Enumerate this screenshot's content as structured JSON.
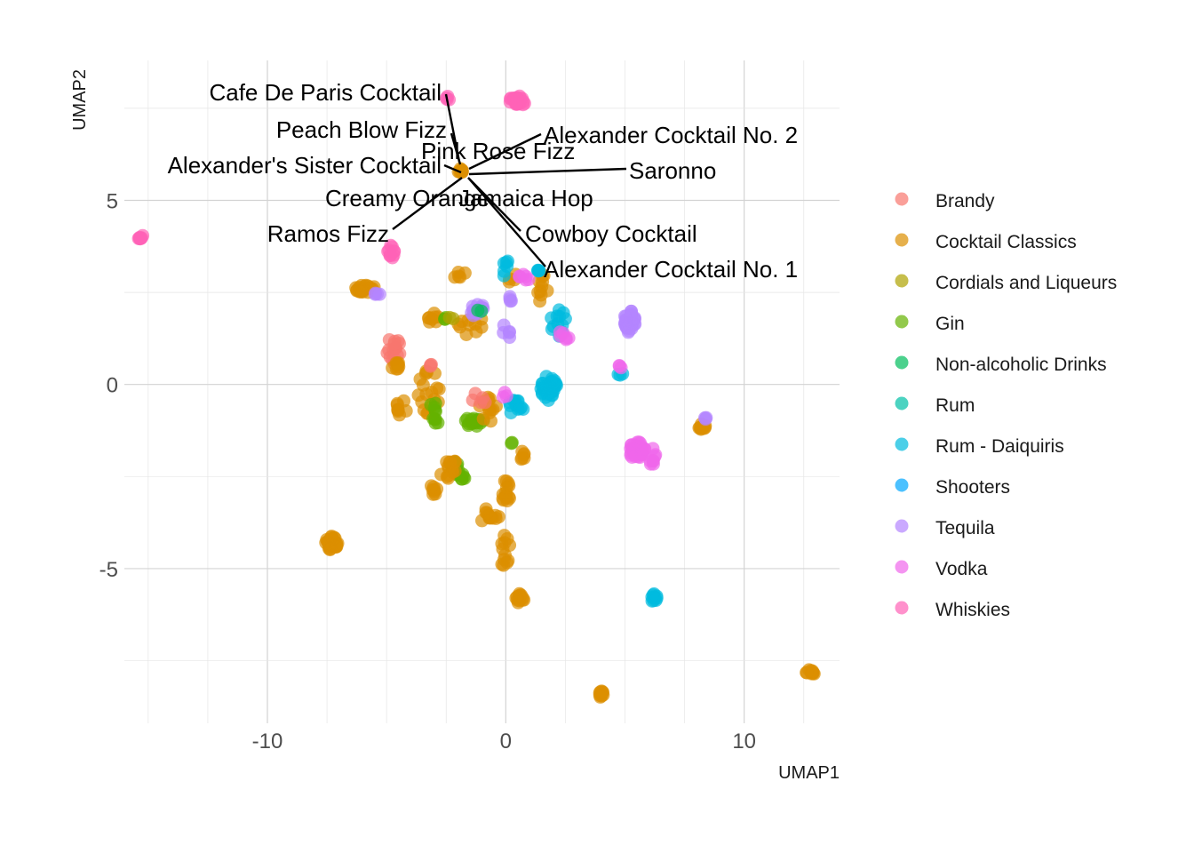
{
  "chart_data": {
    "type": "scatter",
    "xlabel": "UMAP1",
    "ylabel": "UMAP2",
    "xlim": [
      -16,
      14
    ],
    "ylim": [
      -9.2,
      8.8
    ],
    "xticks": [
      -10,
      0,
      10
    ],
    "yticks": [
      -5,
      0,
      5
    ],
    "grid": true,
    "legend_position": "right",
    "legend": [
      {
        "name": "Brandy",
        "color": "#F8766D"
      },
      {
        "name": "Cocktail Classics",
        "color": "#DB8E00"
      },
      {
        "name": "Cordials and Liqueurs",
        "color": "#AEA200"
      },
      {
        "name": "Gin",
        "color": "#64B200"
      },
      {
        "name": "Non-alcoholic Drinks",
        "color": "#00BD5C"
      },
      {
        "name": "Rum",
        "color": "#00C1A7"
      },
      {
        "name": "Rum - Daiquiris",
        "color": "#00BADE"
      },
      {
        "name": "Shooters",
        "color": "#00A6FF"
      },
      {
        "name": "Tequila",
        "color": "#B385FF"
      },
      {
        "name": "Vodka",
        "color": "#EF67EB"
      },
      {
        "name": "Whiskies",
        "color": "#FF63B6"
      }
    ],
    "clusters": [
      {
        "series": "Whiskies",
        "x": -15.3,
        "y": 4.0,
        "n": 8,
        "sx": 0.15,
        "sy": 0.05
      },
      {
        "series": "Whiskies",
        "x": 0.5,
        "y": 7.7,
        "n": 25,
        "sx": 0.35,
        "sy": 0.15
      },
      {
        "series": "Whiskies",
        "x": -2.4,
        "y": 7.8,
        "n": 4,
        "sx": 0.1,
        "sy": 0.1
      },
      {
        "series": "Whiskies",
        "x": -4.8,
        "y": 3.6,
        "n": 10,
        "sx": 0.15,
        "sy": 0.2
      },
      {
        "series": "Cocktail Classics",
        "x": -5.9,
        "y": 2.6,
        "n": 22,
        "sx": 0.45,
        "sy": 0.1
      },
      {
        "series": "Tequila",
        "x": -5.4,
        "y": 2.4,
        "n": 4,
        "sx": 0.2,
        "sy": 0.1
      },
      {
        "series": "Brandy",
        "x": -4.7,
        "y": 0.9,
        "n": 16,
        "sx": 0.3,
        "sy": 0.4
      },
      {
        "series": "Cocktail Classics",
        "x": -4.5,
        "y": 0.5,
        "n": 8,
        "sx": 0.3,
        "sy": 0.1
      },
      {
        "series": "Cocktail Classics",
        "x": -4.4,
        "y": -0.6,
        "n": 8,
        "sx": 0.25,
        "sy": 0.3
      },
      {
        "series": "Cocktail Classics",
        "x": -3.2,
        "y": -0.2,
        "n": 18,
        "sx": 0.5,
        "sy": 0.6
      },
      {
        "series": "Gin",
        "x": -3.0,
        "y": -0.8,
        "n": 10,
        "sx": 0.35,
        "sy": 0.3
      },
      {
        "series": "Cocktail Classics",
        "x": -3.0,
        "y": 1.8,
        "n": 8,
        "sx": 0.3,
        "sy": 0.15
      },
      {
        "series": "Gin",
        "x": -2.5,
        "y": 1.8,
        "n": 3,
        "sx": 0.1,
        "sy": 0.05
      },
      {
        "series": "Cocktail Classics",
        "x": -2.0,
        "y": 3.0,
        "n": 5,
        "sx": 0.3,
        "sy": 0.1
      },
      {
        "series": "Cocktail Classics",
        "x": -1.5,
        "y": 1.6,
        "n": 10,
        "sx": 0.6,
        "sy": 0.3
      },
      {
        "series": "Tequila",
        "x": -1.3,
        "y": 2.1,
        "n": 12,
        "sx": 0.4,
        "sy": 0.25
      },
      {
        "series": "Gin",
        "x": -1.3,
        "y": -1.0,
        "n": 16,
        "sx": 0.4,
        "sy": 0.15
      },
      {
        "series": "Cocktail Classics",
        "x": -0.8,
        "y": -0.7,
        "n": 12,
        "sx": 0.5,
        "sy": 0.4
      },
      {
        "series": "Brandy",
        "x": -1.1,
        "y": -0.4,
        "n": 5,
        "sx": 0.3,
        "sy": 0.2
      },
      {
        "series": "Gin",
        "x": -2.0,
        "y": -2.2,
        "n": 8,
        "sx": 0.3,
        "sy": 0.15
      },
      {
        "series": "Gin",
        "x": -1.9,
        "y": -2.5,
        "n": 8,
        "sx": 0.2,
        "sy": 0.1
      },
      {
        "series": "Cocktail Classics",
        "x": -2.4,
        "y": -2.3,
        "n": 14,
        "sx": 0.45,
        "sy": 0.3
      },
      {
        "series": "Cocktail Classics",
        "x": -3.0,
        "y": -2.8,
        "n": 8,
        "sx": 0.15,
        "sy": 0.2
      },
      {
        "series": "Cocktail Classics",
        "x": -0.6,
        "y": -3.6,
        "n": 12,
        "sx": 0.5,
        "sy": 0.25
      },
      {
        "series": "Cocktail Classics",
        "x": 0.0,
        "y": -4.6,
        "n": 12,
        "sx": 0.2,
        "sy": 0.6
      },
      {
        "series": "Cocktail Classics",
        "x": 0.0,
        "y": -2.9,
        "n": 14,
        "sx": 0.2,
        "sy": 0.3
      },
      {
        "series": "Cocktail Classics",
        "x": 0.6,
        "y": -5.8,
        "n": 12,
        "sx": 0.2,
        "sy": 0.15
      },
      {
        "series": "Cocktail Classics",
        "x": -7.3,
        "y": -4.3,
        "n": 25,
        "sx": 0.25,
        "sy": 0.2
      },
      {
        "series": "Cocktail Classics",
        "x": 4.0,
        "y": -8.4,
        "n": 10,
        "sx": 0.1,
        "sy": 0.1
      },
      {
        "series": "Cocktail Classics",
        "x": 12.8,
        "y": -7.8,
        "n": 10,
        "sx": 0.2,
        "sy": 0.1
      },
      {
        "series": "Cocktail Classics",
        "x": 8.2,
        "y": -1.1,
        "n": 10,
        "sx": 0.2,
        "sy": 0.15
      },
      {
        "series": "Tequila",
        "x": 8.4,
        "y": -0.9,
        "n": 3,
        "sx": 0.05,
        "sy": 0.05
      },
      {
        "series": "Cocktail Classics",
        "x": 0.7,
        "y": -2.0,
        "n": 6,
        "sx": 0.1,
        "sy": 0.2
      },
      {
        "series": "Cocktail Classics",
        "x": 1.6,
        "y": 2.5,
        "n": 10,
        "sx": 0.3,
        "sy": 0.6
      },
      {
        "series": "Cocktail Classics",
        "x": 0.3,
        "y": 2.9,
        "n": 4,
        "sx": 0.2,
        "sy": 0.2
      },
      {
        "series": "Rum - Daiquiris",
        "x": 1.8,
        "y": -0.1,
        "n": 40,
        "sx": 0.35,
        "sy": 0.35
      },
      {
        "series": "Rum - Daiquiris",
        "x": 0.4,
        "y": -0.6,
        "n": 12,
        "sx": 0.4,
        "sy": 0.2
      },
      {
        "series": "Rum - Daiquiris",
        "x": 2.2,
        "y": 1.7,
        "n": 12,
        "sx": 0.35,
        "sy": 0.4
      },
      {
        "series": "Rum - Daiquiris",
        "x": 0.0,
        "y": 3.2,
        "n": 6,
        "sx": 0.15,
        "sy": 0.3
      },
      {
        "series": "Rum - Daiquiris",
        "x": 6.2,
        "y": -5.8,
        "n": 10,
        "sx": 0.15,
        "sy": 0.12
      },
      {
        "series": "Rum - Daiquiris",
        "x": 4.8,
        "y": 0.3,
        "n": 3,
        "sx": 0.1,
        "sy": 0.05
      },
      {
        "series": "Rum - Daiquiris",
        "x": 1.4,
        "y": 3.1,
        "n": 4,
        "sx": 0.1,
        "sy": 0.05
      },
      {
        "series": "Tequila",
        "x": 5.2,
        "y": 1.7,
        "n": 30,
        "sx": 0.25,
        "sy": 0.3
      },
      {
        "series": "Tequila",
        "x": 0.0,
        "y": 1.4,
        "n": 5,
        "sx": 0.2,
        "sy": 0.25
      },
      {
        "series": "Tequila",
        "x": 0.3,
        "y": 2.4,
        "n": 4,
        "sx": 0.2,
        "sy": 0.2
      },
      {
        "series": "Vodka",
        "x": 5.5,
        "y": -1.8,
        "n": 30,
        "sx": 0.35,
        "sy": 0.25
      },
      {
        "series": "Vodka",
        "x": 6.2,
        "y": -2.0,
        "n": 8,
        "sx": 0.15,
        "sy": 0.3
      },
      {
        "series": "Vodka",
        "x": 2.4,
        "y": 1.3,
        "n": 6,
        "sx": 0.25,
        "sy": 0.2
      },
      {
        "series": "Vodka",
        "x": 0.8,
        "y": 2.9,
        "n": 6,
        "sx": 0.3,
        "sy": 0.1
      },
      {
        "series": "Vodka",
        "x": 0.0,
        "y": -0.3,
        "n": 3,
        "sx": 0.2,
        "sy": 0.1
      },
      {
        "series": "Vodka",
        "x": 4.8,
        "y": 0.5,
        "n": 3,
        "sx": 0.1,
        "sy": 0.05
      },
      {
        "series": "Non-alcoholic Drinks",
        "x": -1.1,
        "y": 2.0,
        "n": 2,
        "sx": 0.1,
        "sy": 0.05
      },
      {
        "series": "Gin",
        "x": 0.3,
        "y": -1.6,
        "n": 2,
        "sx": 0.1,
        "sy": 0.05
      },
      {
        "series": "Cordials and Liqueurs",
        "x": -2.3,
        "y": 1.8,
        "n": 2,
        "sx": 0.1,
        "sy": 0.05
      },
      {
        "series": "Brandy",
        "x": -3.2,
        "y": 0.5,
        "n": 3,
        "sx": 0.15,
        "sy": 0.05
      },
      {
        "series": "Cocktail Classics",
        "x": -1.9,
        "y": 5.8,
        "n": 12,
        "sx": 0.1,
        "sy": 0.06
      }
    ],
    "annotations": [
      {
        "text": "Cafe De Paris Cocktail",
        "point": [
          -1.9,
          5.8
        ]
      },
      {
        "text": "Peach Blow Fizz",
        "point": [
          -1.9,
          5.8
        ]
      },
      {
        "text": "Alexander Cocktail No. 2",
        "point": [
          -1.9,
          5.8
        ]
      },
      {
        "text": "Pink Rose Fizz",
        "point": [
          -1.9,
          5.8
        ]
      },
      {
        "text": "Alexander's Sister Cocktail",
        "point": [
          -1.9,
          5.8
        ]
      },
      {
        "text": "Saronno",
        "point": [
          -1.9,
          5.8
        ]
      },
      {
        "text": "Creamy Orange",
        "point": [
          -1.9,
          5.8
        ]
      },
      {
        "text": "Jamaica Hop",
        "point": [
          -1.9,
          5.8
        ]
      },
      {
        "text": "Ramos Fizz",
        "point": [
          -1.9,
          5.8
        ]
      },
      {
        "text": "Cowboy Cocktail",
        "point": [
          -1.9,
          5.8
        ]
      },
      {
        "text": "Alexander Cocktail No. 1",
        "point": [
          -1.9,
          5.8
        ]
      }
    ]
  }
}
